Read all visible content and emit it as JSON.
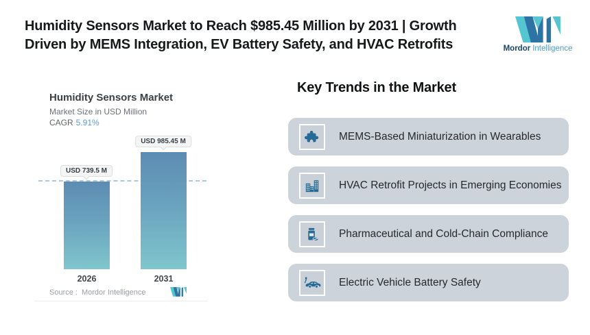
{
  "header": {
    "title_line1": "Humidity Sensors Market to Reach $985.45 Million by 2031 | Growth",
    "title_line2": "Driven by MEMS Integration, EV Battery Safety, and HVAC Retrofits",
    "brand": {
      "name_bold": "Mordor",
      "name_light": "Intelligence"
    }
  },
  "chart": {
    "title": "Humidity Sensors Market",
    "subtitle": "Market Size in USD Million",
    "cagr_label": "CAGR",
    "cagr_value": "5.91%",
    "bars": [
      {
        "year": "2026",
        "value_label": "USD 739.5 M"
      },
      {
        "year": "2031",
        "value_label": "USD 985.45 M"
      }
    ],
    "source_label": "Source :",
    "source_value": "Mordor Intelligence"
  },
  "chart_data": {
    "type": "bar",
    "categories": [
      "2026",
      "2031"
    ],
    "values": [
      739.5,
      985.45
    ],
    "title": "Humidity Sensors Market",
    "ylabel": "Market Size in USD Million",
    "data_labels": [
      "USD 739.5 M",
      "USD 985.45 M"
    ],
    "cagr_percent": 5.91,
    "dashed_reference_line_at": 739.5,
    "grid": false,
    "legend": false,
    "bar_gradient": [
      "#5d8cb3",
      "#80c6cd"
    ]
  },
  "trends": {
    "heading": "Key Trends in the Market",
    "items": [
      {
        "icon": "puzzle-icon",
        "label": "MEMS-Based Miniaturization in Wearables"
      },
      {
        "icon": "buildings-icon",
        "label": "HVAC Retrofit Projects in Emerging Economies"
      },
      {
        "icon": "pill-bottle-icon",
        "label": "Pharmaceutical and Cold-Chain Compliance"
      },
      {
        "icon": "electric-car-icon",
        "label": "Electric Vehicle Battery Safety"
      }
    ]
  },
  "colors": {
    "accent_icon_blue": "#276a95",
    "logo_navy": "#2d73a4",
    "logo_teal": "#55c5d2",
    "card_bg": "#cdd3da",
    "cagr_value_blue": "#5b9bd5",
    "dashed_line": "#a9c9de"
  }
}
